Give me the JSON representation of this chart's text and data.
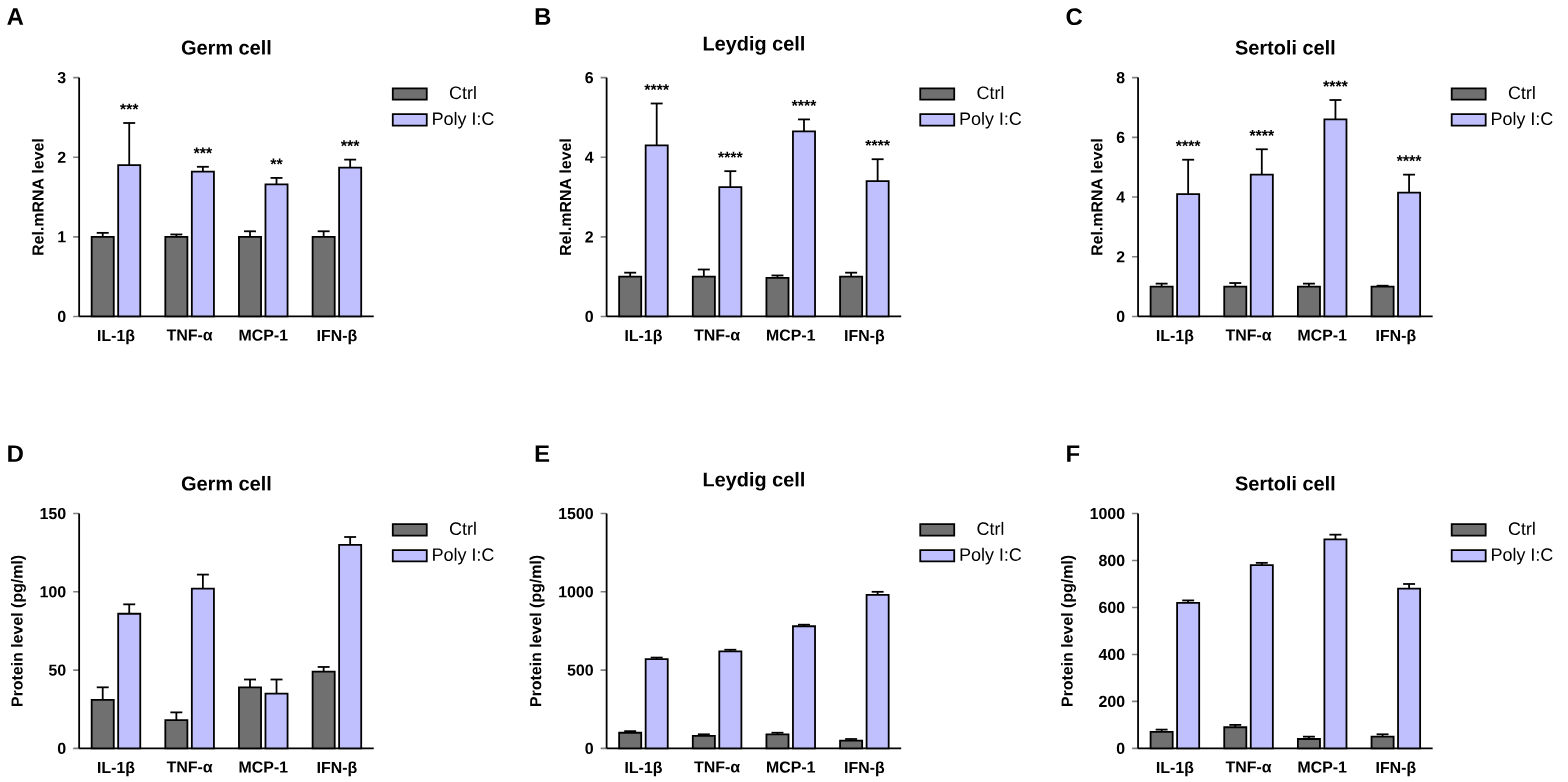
{
  "chart_data": [
    {
      "type": "bar",
      "title": "Germ cell",
      "ylabel": "Rel.mRNA level",
      "categories": [
        "IL-1β",
        "TNF-α",
        "MCP-1",
        "IFN-β"
      ],
      "ylim": [
        0,
        3
      ],
      "yticks": [
        0,
        1,
        2,
        3
      ],
      "legend": "top right",
      "series": [
        {
          "name": "Ctrl",
          "color": "#707070",
          "values": [
            1.0,
            1.0,
            1.0,
            1.0
          ],
          "errors": [
            0.05,
            0.03,
            0.07,
            0.07
          ]
        },
        {
          "name": "Poly I:C",
          "color": "#c0c0ff",
          "values": [
            1.9,
            1.82,
            1.66,
            1.87
          ],
          "errors": [
            0.53,
            0.06,
            0.08,
            0.1
          ]
        }
      ],
      "annotations": [
        "A",
        "***",
        "***",
        "**",
        "***"
      ]
    },
    {
      "type": "bar",
      "title": "Leydig cell",
      "ylabel": "Rel.mRNA level",
      "categories": [
        "IL-1β",
        "TNF-α",
        "MCP-1",
        "IFN-β"
      ],
      "ylim": [
        0,
        6
      ],
      "yticks": [
        0,
        2,
        4,
        6
      ],
      "legend": "top right",
      "series": [
        {
          "name": "Ctrl",
          "color": "#707070",
          "values": [
            1.0,
            1.0,
            0.97,
            1.0
          ],
          "errors": [
            0.1,
            0.18,
            0.06,
            0.1
          ]
        },
        {
          "name": "Poly I:C",
          "color": "#c0c0ff",
          "values": [
            4.3,
            3.25,
            4.65,
            3.4
          ],
          "errors": [
            1.05,
            0.4,
            0.3,
            0.55
          ]
        }
      ],
      "annotations": [
        "B",
        "****",
        "****",
        "****",
        "****"
      ]
    },
    {
      "type": "bar",
      "title": "Sertoli cell",
      "ylabel": "Rel.mRNA level",
      "categories": [
        "IL-1β",
        "TNF-α",
        "MCP-1",
        "IFN-β"
      ],
      "ylim": [
        0,
        8
      ],
      "yticks": [
        0,
        2,
        4,
        6,
        8
      ],
      "legend": "top right",
      "series": [
        {
          "name": "Ctrl",
          "color": "#707070",
          "values": [
            1.0,
            1.0,
            1.0,
            1.0
          ],
          "errors": [
            0.1,
            0.12,
            0.1,
            0.03
          ]
        },
        {
          "name": "Poly I:C",
          "color": "#c0c0ff",
          "values": [
            4.1,
            4.75,
            6.6,
            4.15
          ],
          "errors": [
            1.15,
            0.85,
            0.65,
            0.6
          ]
        }
      ],
      "annotations": [
        "C",
        "****",
        "****",
        "****",
        "****"
      ]
    },
    {
      "type": "bar",
      "title": "Germ cell",
      "ylabel": "Protein level (pg/ml)",
      "categories": [
        "IL-1β",
        "TNF-α",
        "MCP-1",
        "IFN-β"
      ],
      "ylim": [
        0,
        150
      ],
      "yticks": [
        0,
        50,
        100,
        150
      ],
      "legend": "top right",
      "series": [
        {
          "name": "Ctrl",
          "color": "#707070",
          "values": [
            31,
            18,
            39,
            49
          ],
          "errors": [
            8,
            5,
            5,
            3
          ]
        },
        {
          "name": "Poly I:C",
          "color": "#c0c0ff",
          "values": [
            86,
            102,
            35,
            130
          ],
          "errors": [
            6,
            9,
            9,
            5
          ]
        }
      ],
      "annotations": [
        "D"
      ]
    },
    {
      "type": "bar",
      "title": "Leydig cell",
      "ylabel": "Protein level (pg/ml)",
      "categories": [
        "IL-1β",
        "TNF-α",
        "MCP-1",
        "IFN-β"
      ],
      "ylim": [
        0,
        1500
      ],
      "yticks": [
        0,
        500,
        1000,
        1500
      ],
      "legend": "top right",
      "series": [
        {
          "name": "Ctrl",
          "color": "#707070",
          "values": [
            100,
            80,
            90,
            50
          ],
          "errors": [
            10,
            10,
            10,
            10
          ]
        },
        {
          "name": "Poly I:C",
          "color": "#c0c0ff",
          "values": [
            570,
            620,
            780,
            980
          ],
          "errors": [
            10,
            10,
            10,
            20
          ]
        }
      ],
      "annotations": [
        "E"
      ]
    },
    {
      "type": "bar",
      "title": "Sertoli cell",
      "ylabel": "Protein level (pg/ml)",
      "categories": [
        "IL-1β",
        "TNF-α",
        "MCP-1",
        "IFN-β"
      ],
      "ylim": [
        0,
        1000
      ],
      "yticks": [
        0,
        200,
        400,
        600,
        800,
        1000
      ],
      "legend": "top right",
      "series": [
        {
          "name": "Ctrl",
          "color": "#707070",
          "values": [
            70,
            90,
            40,
            50
          ],
          "errors": [
            10,
            10,
            10,
            10
          ]
        },
        {
          "name": "Poly I:C",
          "color": "#c0c0ff",
          "values": [
            620,
            780,
            890,
            680
          ],
          "errors": [
            10,
            10,
            20,
            20
          ]
        }
      ],
      "annotations": [
        "F"
      ]
    }
  ]
}
